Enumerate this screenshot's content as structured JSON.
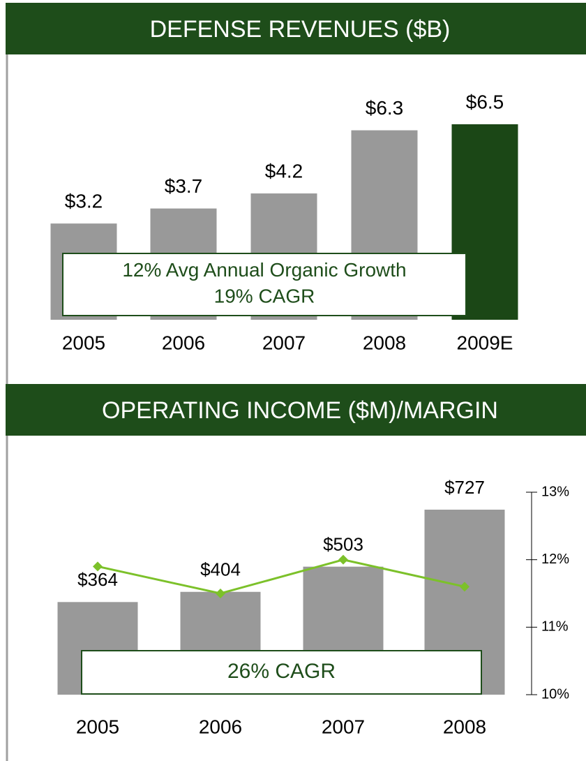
{
  "chart_data": [
    {
      "type": "bar",
      "title": "DEFENSE REVENUES ($B)",
      "categories": [
        "2005",
        "2006",
        "2007",
        "2008",
        "2009E"
      ],
      "values": [
        3.2,
        3.7,
        4.2,
        6.3,
        6.5
      ],
      "value_labels": [
        "$3.2",
        "$3.7",
        "$4.2",
        "$6.3",
        "$6.5"
      ],
      "colors": [
        "#999999",
        "#999999",
        "#999999",
        "#999999",
        "#1b4716"
      ],
      "annotations": [
        "12% Avg Annual Organic Growth",
        "19% CAGR"
      ]
    },
    {
      "type": "bar",
      "title": "OPERATING INCOME ($M)/MARGIN",
      "categories": [
        "2005",
        "2006",
        "2007",
        "2008"
      ],
      "values": [
        364,
        404,
        503,
        727
      ],
      "value_labels": [
        "$364",
        "$404",
        "$503",
        "$727"
      ],
      "color": "#999999",
      "line_values": [
        11.9,
        11.5,
        12.0,
        11.6
      ],
      "line_color": "#7cc12a",
      "y2lim": [
        10,
        13
      ],
      "y2ticks": [
        {
          "value": 13,
          "label": "13%"
        },
        {
          "value": 12,
          "label": "12%"
        },
        {
          "value": 11,
          "label": "11%"
        },
        {
          "value": 10,
          "label": "10%"
        }
      ],
      "annotations": [
        "26% CAGR"
      ]
    }
  ]
}
